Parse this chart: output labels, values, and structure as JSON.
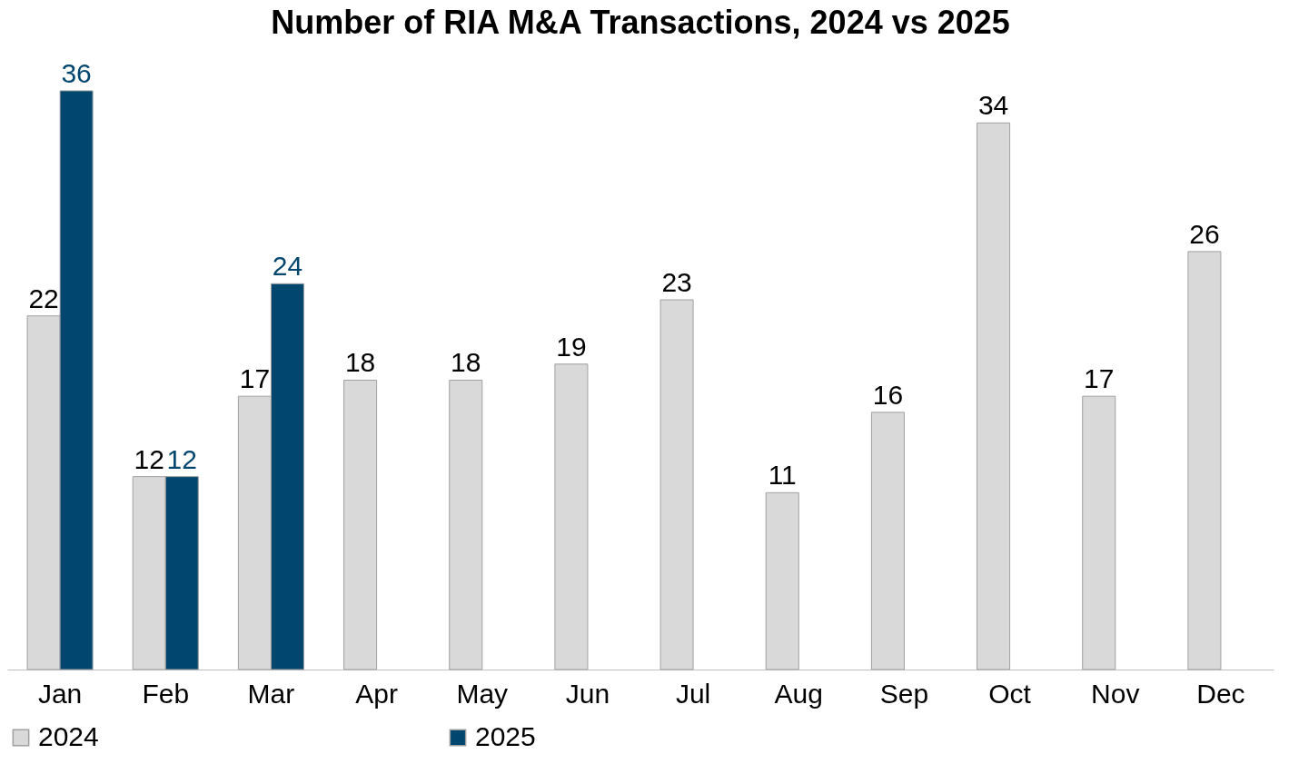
{
  "chart_data": {
    "type": "bar",
    "title": "Number of RIA M&A Transactions, 2024 vs 2025",
    "categories": [
      "Jan",
      "Feb",
      "Mar",
      "Apr",
      "May",
      "Jun",
      "Jul",
      "Aug",
      "Sep",
      "Oct",
      "Nov",
      "Dec"
    ],
    "series": [
      {
        "name": "2024",
        "color": "#d9d9d9",
        "values": [
          22,
          12,
          17,
          18,
          18,
          19,
          23,
          11,
          16,
          34,
          17,
          26
        ]
      },
      {
        "name": "2025",
        "color": "#00466e",
        "values": [
          36,
          12,
          24,
          null,
          null,
          null,
          null,
          null,
          null,
          null,
          null,
          null
        ]
      }
    ],
    "data_labels": true,
    "legend": "bottom",
    "grid": false
  }
}
